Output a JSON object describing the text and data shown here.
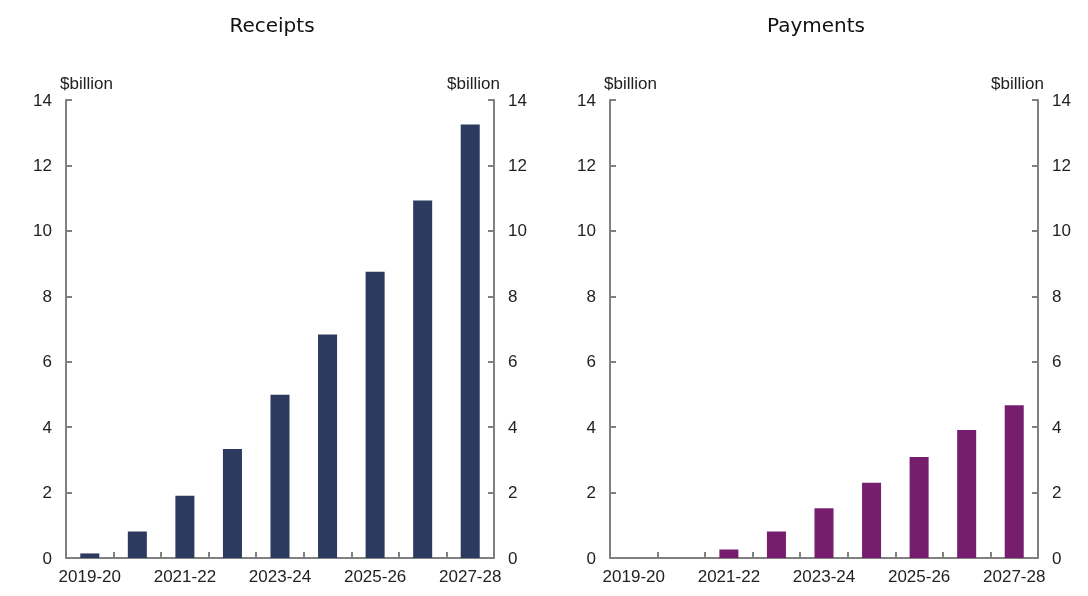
{
  "chart_data": [
    {
      "type": "bar",
      "title": "Receipts",
      "ylabel": "$billion",
      "y2label": "$billion",
      "categories": [
        "2019-20",
        null,
        "2021-22",
        null,
        "2023-24",
        null,
        "2025-26",
        null,
        "2027-28"
      ],
      "series": [
        {
          "color": "#2b3a5e",
          "values": [
            0.14,
            0.81,
            1.9,
            3.33,
            4.99,
            6.83,
            8.75,
            10.93,
            13.25
          ]
        }
      ],
      "ylim": [
        0,
        14
      ],
      "yticks": [
        0,
        2,
        4,
        6,
        8,
        10,
        12,
        14
      ],
      "y2lim": [
        0,
        14
      ],
      "y2ticks": [
        0,
        2,
        4,
        6,
        8,
        10,
        12,
        14
      ],
      "grid": false
    },
    {
      "type": "bar",
      "title": "Payments",
      "ylabel": "$billion",
      "y2label": "$billion",
      "categories": [
        "2019-20",
        null,
        "2021-22",
        null,
        "2023-24",
        null,
        "2025-26",
        null,
        "2027-28"
      ],
      "series": [
        {
          "color": "#761d6e",
          "values": [
            0,
            0,
            0.26,
            0.81,
            1.52,
            2.3,
            3.09,
            3.91,
            4.67
          ]
        }
      ],
      "ylim": [
        0,
        14
      ],
      "yticks": [
        0,
        2,
        4,
        6,
        8,
        10,
        12,
        14
      ],
      "y2lim": [
        0,
        14
      ],
      "y2ticks": [
        0,
        2,
        4,
        6,
        8,
        10,
        12,
        14
      ],
      "grid": false
    }
  ]
}
